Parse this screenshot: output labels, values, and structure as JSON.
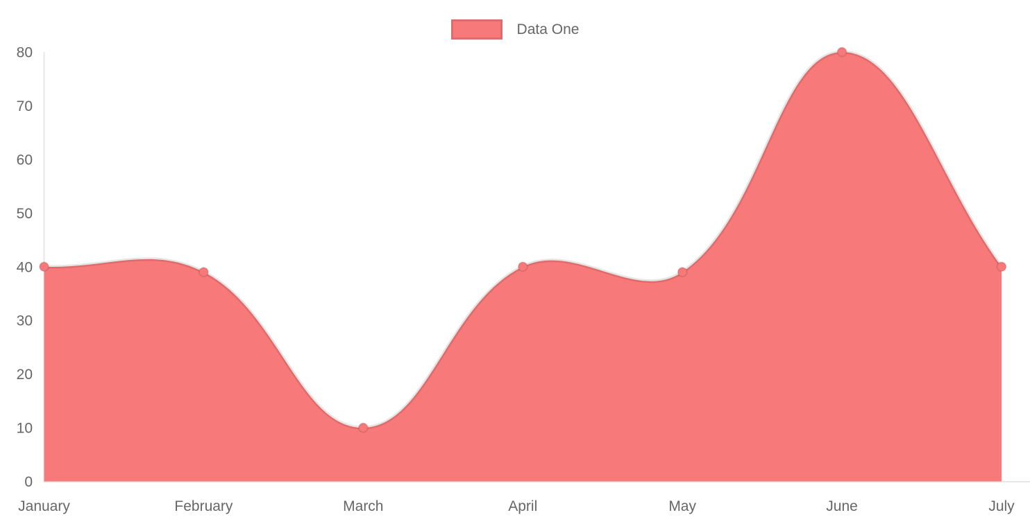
{
  "chart_data": {
    "type": "area",
    "title": "",
    "categories": [
      "January",
      "February",
      "March",
      "April",
      "May",
      "June",
      "July"
    ],
    "series": [
      {
        "name": "Data One",
        "values": [
          40,
          39,
          10,
          40,
          39,
          80,
          40
        ]
      }
    ],
    "y_ticks": [
      "0",
      "10",
      "20",
      "30",
      "40",
      "50",
      "60",
      "70",
      "80"
    ],
    "ylim": [
      0,
      80
    ],
    "grid": false,
    "legend_position": "top",
    "line_smoothing": "cubic-bezier-tension-0.4",
    "colors": {
      "fill": "#f87979",
      "line": "rgba(0,0,0,0.1)",
      "point_fill": "#f87979",
      "point_border": "rgba(0,0,0,0.1)",
      "axis_line": "rgba(0,0,0,0.1)",
      "tick_text": "#666666",
      "legend_text": "#666666",
      "background": "#ffffff"
    }
  }
}
